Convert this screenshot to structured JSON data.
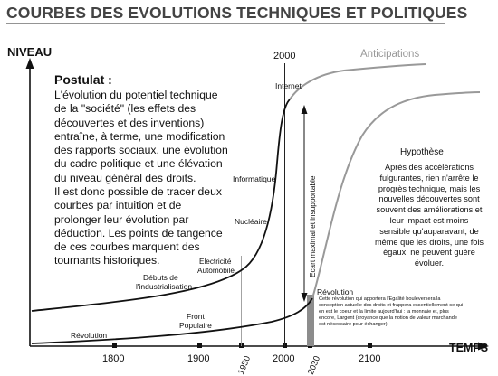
{
  "title": "COURBES DES EVOLUTIONS TECHNIQUES ET POLITIQUES",
  "axes": {
    "y_label": "NIVEAU",
    "x_label": "TEMPS"
  },
  "x_ticks": [
    "1800",
    "1900",
    "2000",
    "2100"
  ],
  "top_year": "2000",
  "rotated_years": {
    "y1950": "1950",
    "y2030": "2030"
  },
  "labels": {
    "anticipations": "Anticipations",
    "internet": "Internet",
    "informatique": "Informatique",
    "nucleaire": "Nucléaire",
    "electricite": "Electricité",
    "automobile": "Automobile",
    "debuts_line1": "Débuts de",
    "debuts_line2": "l'industrialisation",
    "revolution_left": "Révolution",
    "front_line1": "Front",
    "front_line2": "Populaire",
    "revolution_right": "Révolution",
    "ecart": "Ecart maximal et insupportable"
  },
  "postulat": {
    "title": "Postulat :",
    "paragraph1": "L'évolution du potentiel technique de la \"société\" (les effets des découvertes et des inventions) entraîne, à terme, une modification des rapports sociaux, une évolution du cadre politique et une élévation du niveau général des droits.",
    "paragraph2": "Il est donc possible de tracer deux courbes par intuition et de prolonger leur évolution par déduction. Les points de tangence de ces courbes marquent des tournants historiques."
  },
  "hypothese": {
    "title": "Hypothèse",
    "text": "Après des accélérations fulgurantes, rien n'arrête le progrès technique, mais les nouvelles découvertes sont souvent des améliorations et leur impact est moins sensible qu'auparavant, de même que les droits, une fois égaux, ne peuvent guère évoluer."
  },
  "revolution_note": "Cette révolution qui apportera l'Egalité bouleversera la conception actuelle des droits et frappera essentiellement ce qui en est le coeur et la limite aujourd'hui : la monnaie et, plus encore, Largent (croyance que la notion de valeur marchande est nécessaire pour échanger).",
  "colors": {
    "text": "#111111",
    "title": "#444444",
    "anticipation_curve": "#999999",
    "axis": "#111111",
    "revolution_bar": "#8c8c8c"
  }
}
